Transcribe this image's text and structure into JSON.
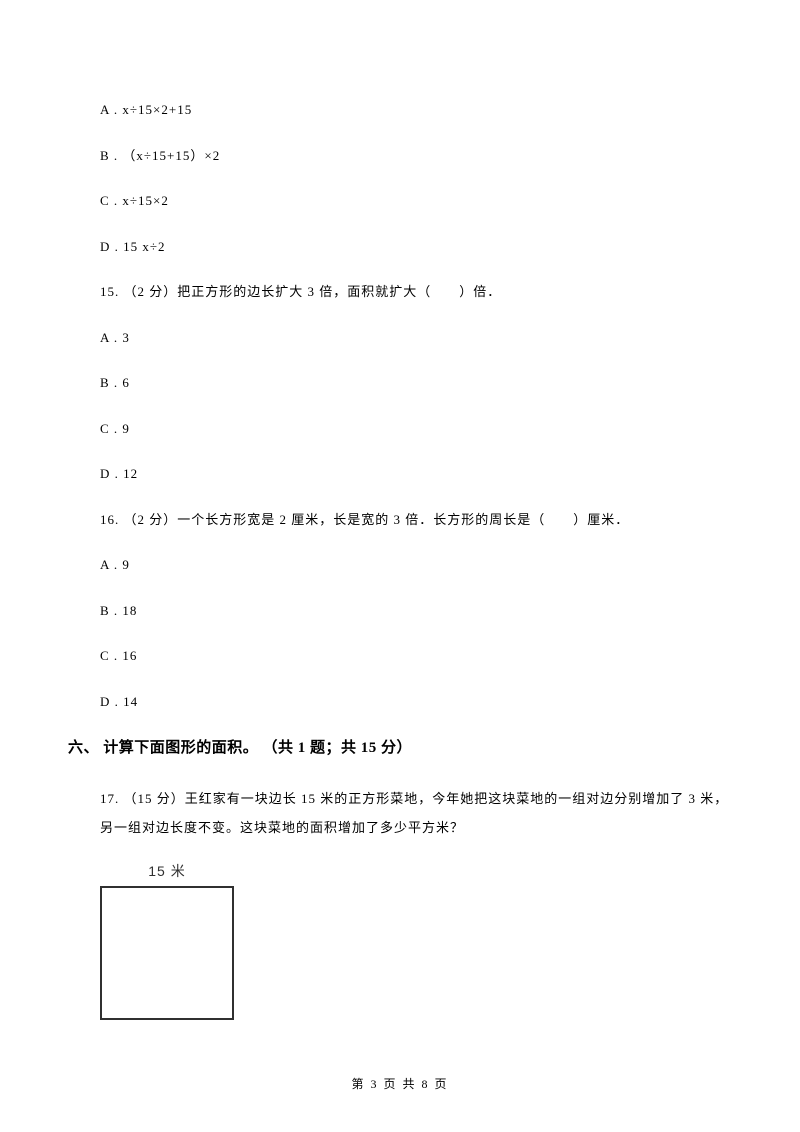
{
  "q14": {
    "optA": "A . x÷15×2+15",
    "optB": "B . （x÷15+15）×2",
    "optC": "C . x÷15×2",
    "optD": "D . 15 x÷2"
  },
  "q15": {
    "stem": "15. （2 分）把正方形的边长扩大 3 倍，面积就扩大（　　）倍．",
    "optA": "A . 3",
    "optB": "B . 6",
    "optC": "C . 9",
    "optD": "D . 12"
  },
  "q16": {
    "stem": "16. （2 分）一个长方形宽是 2 厘米，长是宽的 3 倍．长方形的周长是（　　）厘米．",
    "optA": "A . 9",
    "optB": "B . 18",
    "optC": "C . 16",
    "optD": "D . 14"
  },
  "section6": {
    "heading": "六、 计算下面图形的面积。 （共 1 题；共 15 分）"
  },
  "q17": {
    "text": "17. （15 分）王红家有一块边长 15 米的正方形菜地，今年她把这块菜地的一组对边分别增加了 3 米，另一组对边长度不变。这块菜地的面积增加了多少平方米？",
    "figure_label": "15 米"
  },
  "footer": {
    "text": "第 3 页 共 8 页"
  },
  "colors": {
    "background": "#ffffff",
    "text": "#000000",
    "figure_border": "#303030"
  },
  "typography": {
    "body_fontsize": 13,
    "heading_fontsize": 15,
    "footer_fontsize": 12
  }
}
